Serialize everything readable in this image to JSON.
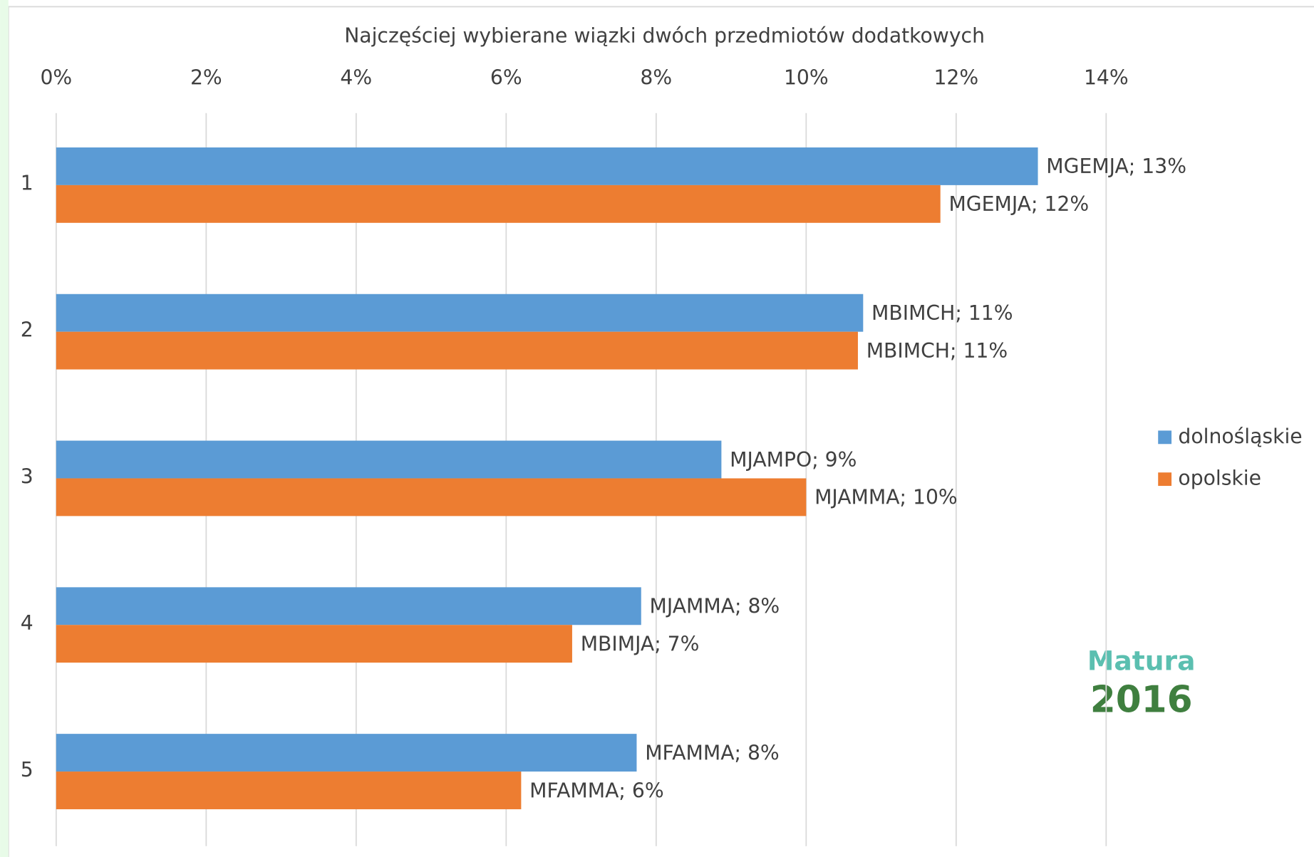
{
  "chart_data": {
    "type": "barh",
    "title": "Najczęściej wybierane wiązki dwóch przedmiotów dodatkowych",
    "categories": [
      "1",
      "2",
      "3",
      "4",
      "5"
    ],
    "series": [
      {
        "name": "dolnośląskie",
        "color": "#5b9bd5",
        "values": [
          13.09,
          10.76,
          8.87,
          7.8,
          7.74
        ],
        "value_labels": [
          "MGEMJA; 13%",
          "MBIMCH; 11%",
          "MJAMPO; 9%",
          "MJAMMA; 8%",
          "MFAMMA; 8%"
        ]
      },
      {
        "name": "opolskie",
        "color": "#ed7d31",
        "values": [
          11.79,
          10.69,
          10.0,
          6.88,
          6.2
        ],
        "value_labels": [
          "MGEMJA; 12%",
          "MBIMCH; 11%",
          "MJAMMA; 10%",
          "MBIMJA; 7%",
          "MFAMMA; 6%"
        ]
      }
    ],
    "xlim": [
      0,
      14
    ],
    "xticks": [
      {
        "value": 0,
        "label": "0%"
      },
      {
        "value": 2,
        "label": "2%"
      },
      {
        "value": 4,
        "label": "4%"
      },
      {
        "value": 6,
        "label": "6%"
      },
      {
        "value": 8,
        "label": "8%"
      },
      {
        "value": 10,
        "label": "10%"
      },
      {
        "value": 12,
        "label": "12%"
      },
      {
        "value": 14,
        "label": "14%"
      }
    ],
    "grid": true,
    "legend": "right",
    "logo": {
      "title": "Matura",
      "year": "2016"
    }
  }
}
